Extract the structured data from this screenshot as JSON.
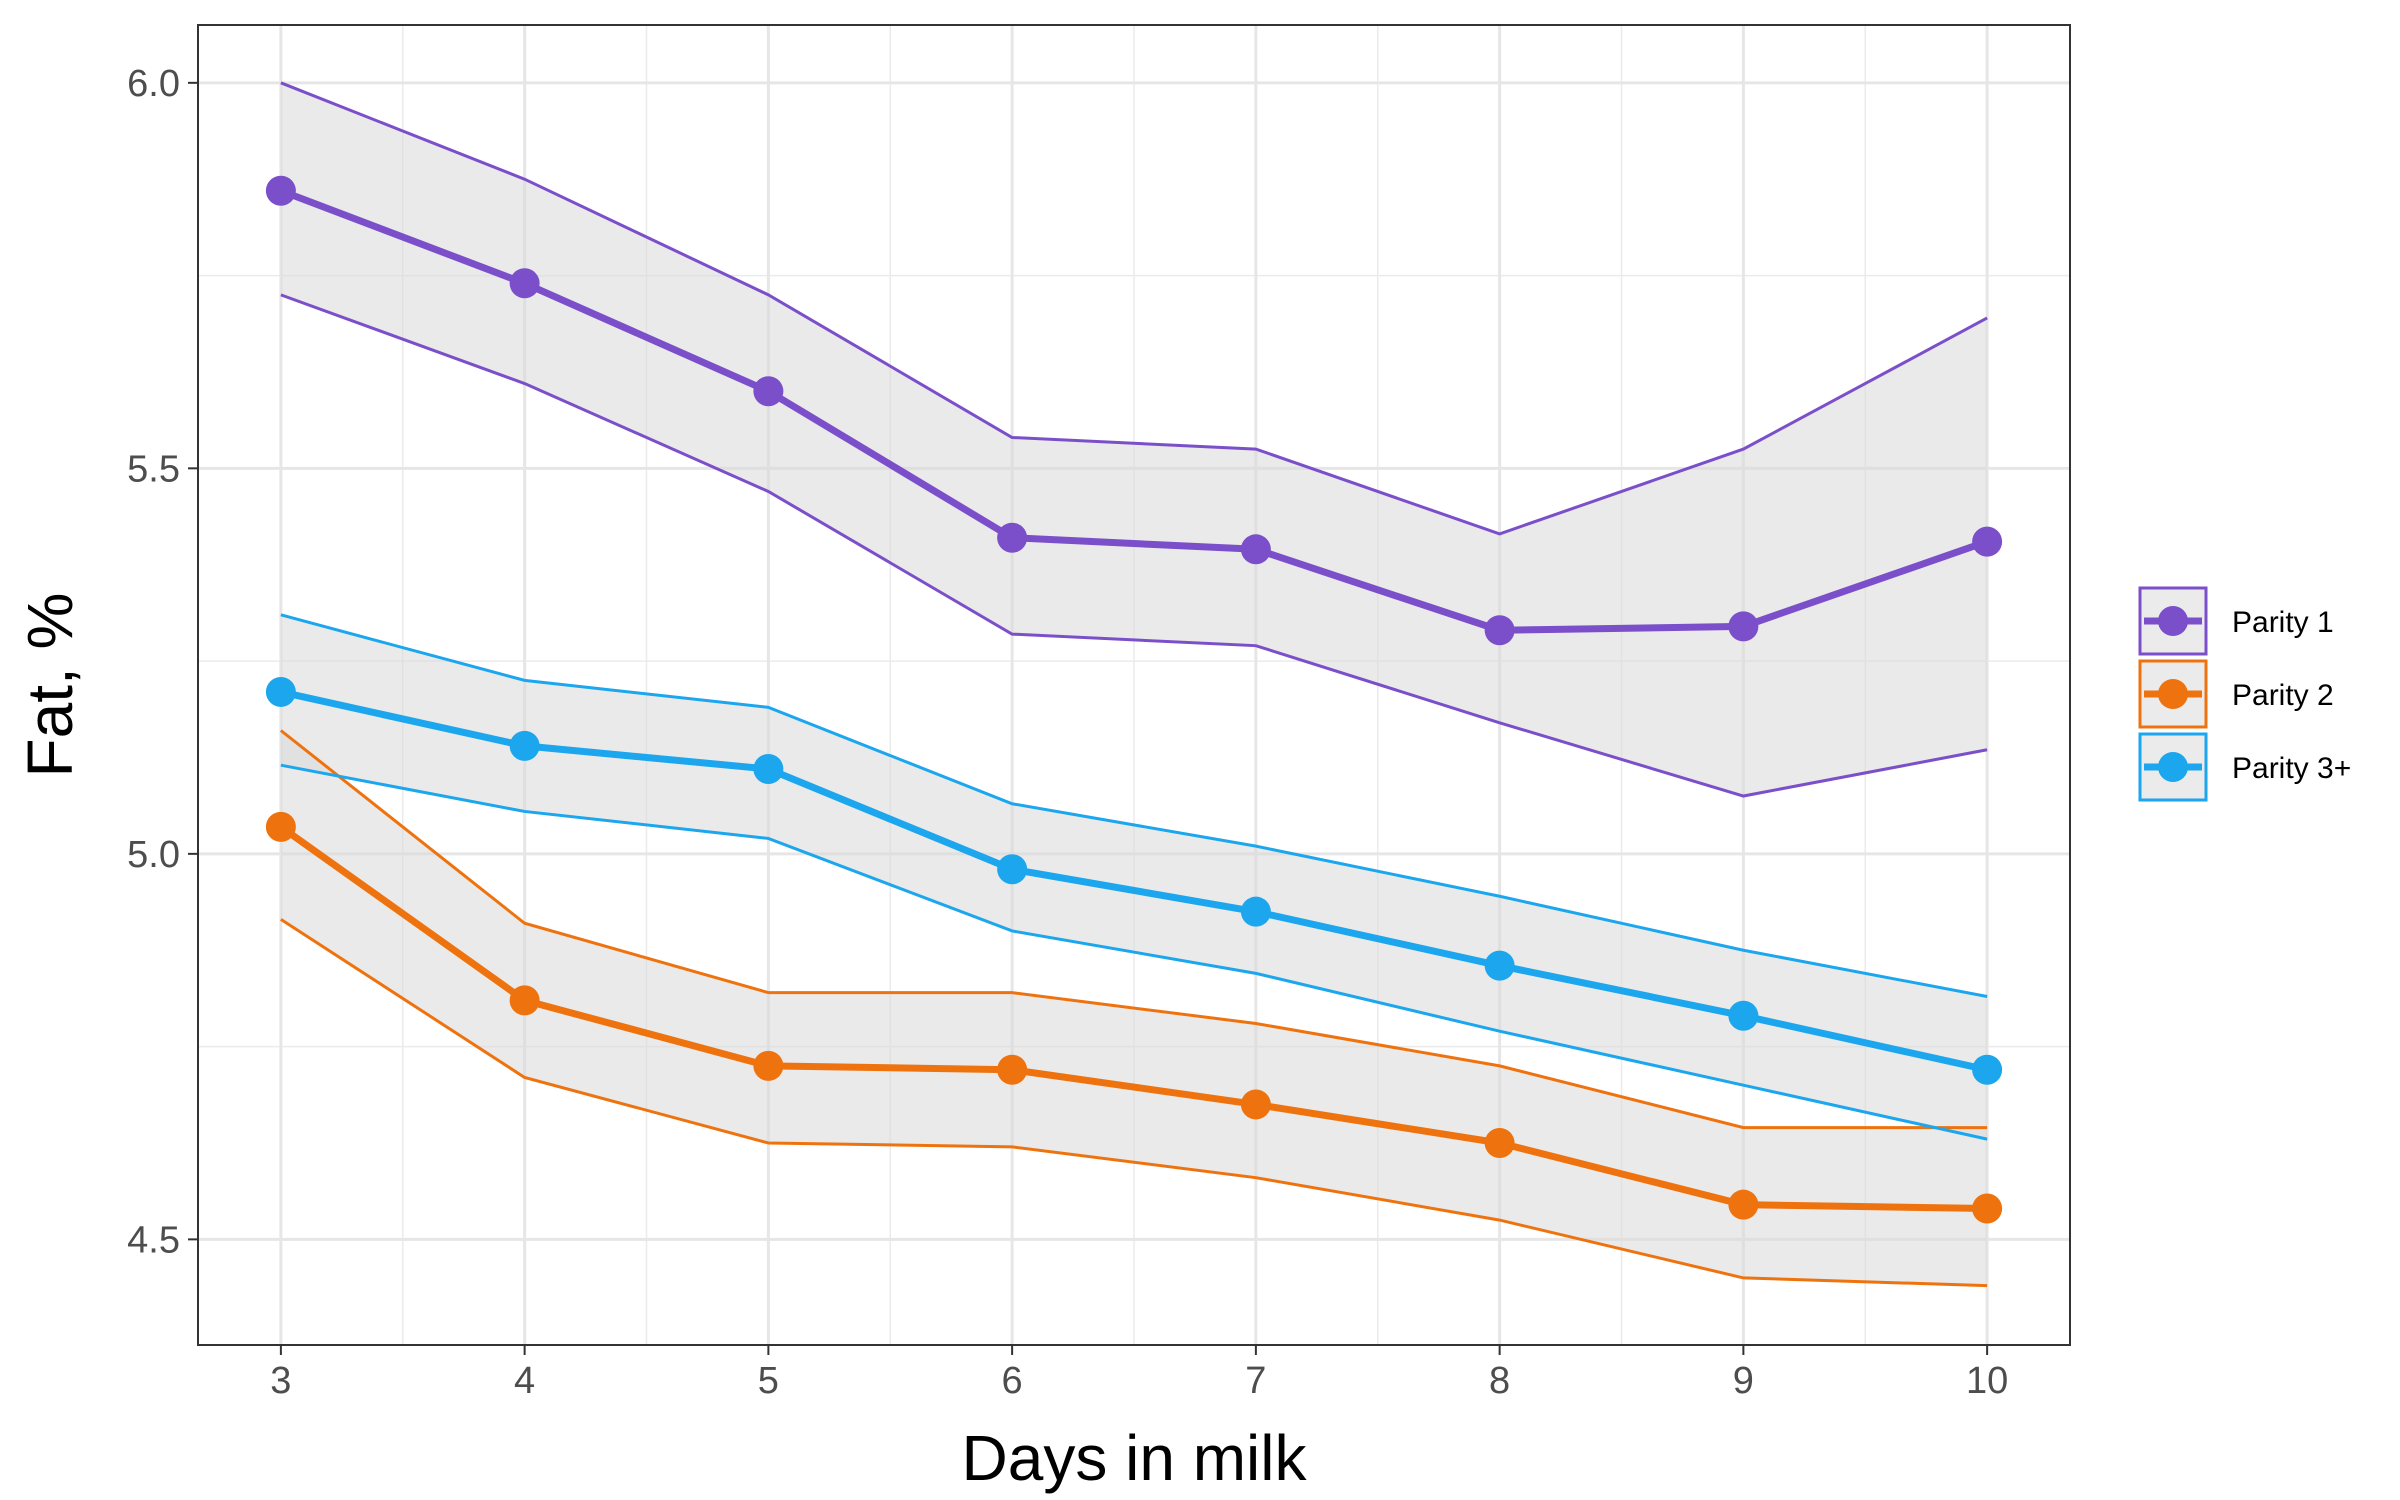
{
  "chart_data": {
    "type": "line",
    "title": "",
    "xlabel": "Days in milk",
    "ylabel": "Fat, %",
    "x": [
      3,
      4,
      5,
      6,
      7,
      8,
      9,
      10
    ],
    "xlim": [
      2.66,
      10.34
    ],
    "ylim": [
      4.363,
      6.075
    ],
    "xticks": [
      "3",
      "4",
      "5",
      "6",
      "7",
      "8",
      "9",
      "10"
    ],
    "yticks": [
      4.5,
      5.0,
      5.5,
      6.0
    ],
    "ytick_labels": [
      "4.5",
      "5.0",
      "5.5",
      "6.0"
    ],
    "grid": true,
    "legend_position": "right",
    "band_fill": "#d9d9d9",
    "series": [
      {
        "name": "Parity 1",
        "color": "#7b4fca",
        "values": [
          5.86,
          5.74,
          5.6,
          5.41,
          5.395,
          5.29,
          5.295,
          5.405
        ],
        "upper": [
          6.0,
          5.875,
          5.725,
          5.54,
          5.525,
          5.415,
          5.525,
          5.695
        ],
        "lower": [
          5.725,
          5.61,
          5.47,
          5.285,
          5.27,
          5.17,
          5.075,
          5.135
        ]
      },
      {
        "name": "Parity 2",
        "color": "#ee730f",
        "values": [
          5.035,
          4.81,
          4.725,
          4.72,
          4.675,
          4.625,
          4.545,
          4.54
        ],
        "upper": [
          5.16,
          4.91,
          4.82,
          4.82,
          4.78,
          4.725,
          4.645,
          4.645
        ],
        "lower": [
          4.915,
          4.71,
          4.625,
          4.62,
          4.58,
          4.525,
          4.45,
          4.44
        ]
      },
      {
        "name": "Parity 3+",
        "color": "#1ba6ee",
        "values": [
          5.21,
          5.14,
          5.11,
          4.98,
          4.925,
          4.855,
          4.79,
          4.72
        ],
        "upper": [
          5.31,
          5.225,
          5.19,
          5.065,
          5.01,
          4.945,
          4.875,
          4.815
        ],
        "lower": [
          5.115,
          5.055,
          5.02,
          4.9,
          4.845,
          4.77,
          4.7,
          4.63
        ]
      }
    ]
  }
}
